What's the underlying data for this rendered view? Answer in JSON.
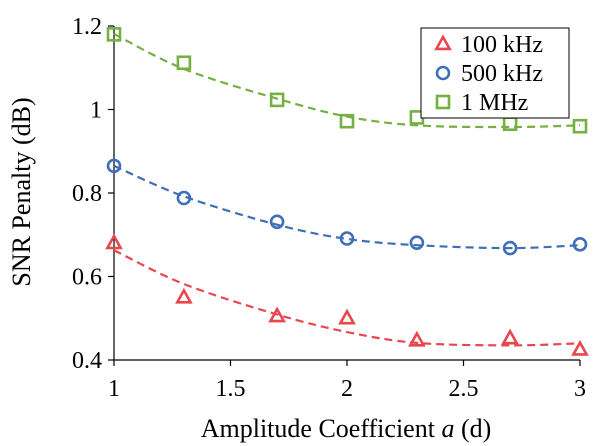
{
  "chart_data": {
    "type": "scatter",
    "title": "",
    "xlabel_prefix": "Amplitude Coefficient ",
    "xlabel_var": "a",
    "xlabel_suffix": " (d)",
    "ylabel": "SNR Penalty (dB)",
    "xlim": [
      1,
      3
    ],
    "ylim": [
      0.4,
      1.2
    ],
    "xticks": [
      1,
      1.5,
      2,
      2.5,
      3
    ],
    "xtick_labels": [
      "1",
      "1.5",
      "2",
      "2.5",
      "3"
    ],
    "yticks": [
      0.4,
      0.6,
      0.8,
      1.0,
      1.2
    ],
    "ytick_labels": [
      "0.4",
      "0.6",
      "0.8",
      "1",
      "1.2"
    ],
    "grid": false,
    "legend_position": "top-right",
    "series": [
      {
        "name": "100 kHz",
        "marker": "triangle",
        "color": "#e8474e",
        "x": [
          1,
          1.3,
          1.7,
          2,
          2.3,
          2.7,
          3
        ],
        "y": [
          0.68,
          0.55,
          0.505,
          0.5,
          0.447,
          0.452,
          0.425
        ],
        "fit": [
          0.663,
          0.582,
          0.509,
          0.467,
          0.441,
          0.435,
          0.44
        ]
      },
      {
        "name": "500 kHz",
        "marker": "circle",
        "color": "#3f6fb6",
        "x": [
          1,
          1.3,
          1.7,
          2,
          2.3,
          2.7,
          3
        ],
        "y": [
          0.865,
          0.788,
          0.731,
          0.691,
          0.681,
          0.668,
          0.677
        ],
        "fit": [
          0.865,
          0.792,
          0.724,
          0.69,
          0.675,
          0.668,
          0.675
        ]
      },
      {
        "name": "1  MHz",
        "marker": "square",
        "color": "#76b043",
        "x": [
          1,
          1.3,
          1.7,
          2,
          2.3,
          2.7,
          3
        ],
        "y": [
          1.18,
          1.112,
          1.023,
          0.972,
          0.981,
          0.966,
          0.96
        ],
        "fit": [
          1.181,
          1.097,
          1.026,
          0.983,
          0.962,
          0.958,
          0.962
        ]
      }
    ]
  }
}
